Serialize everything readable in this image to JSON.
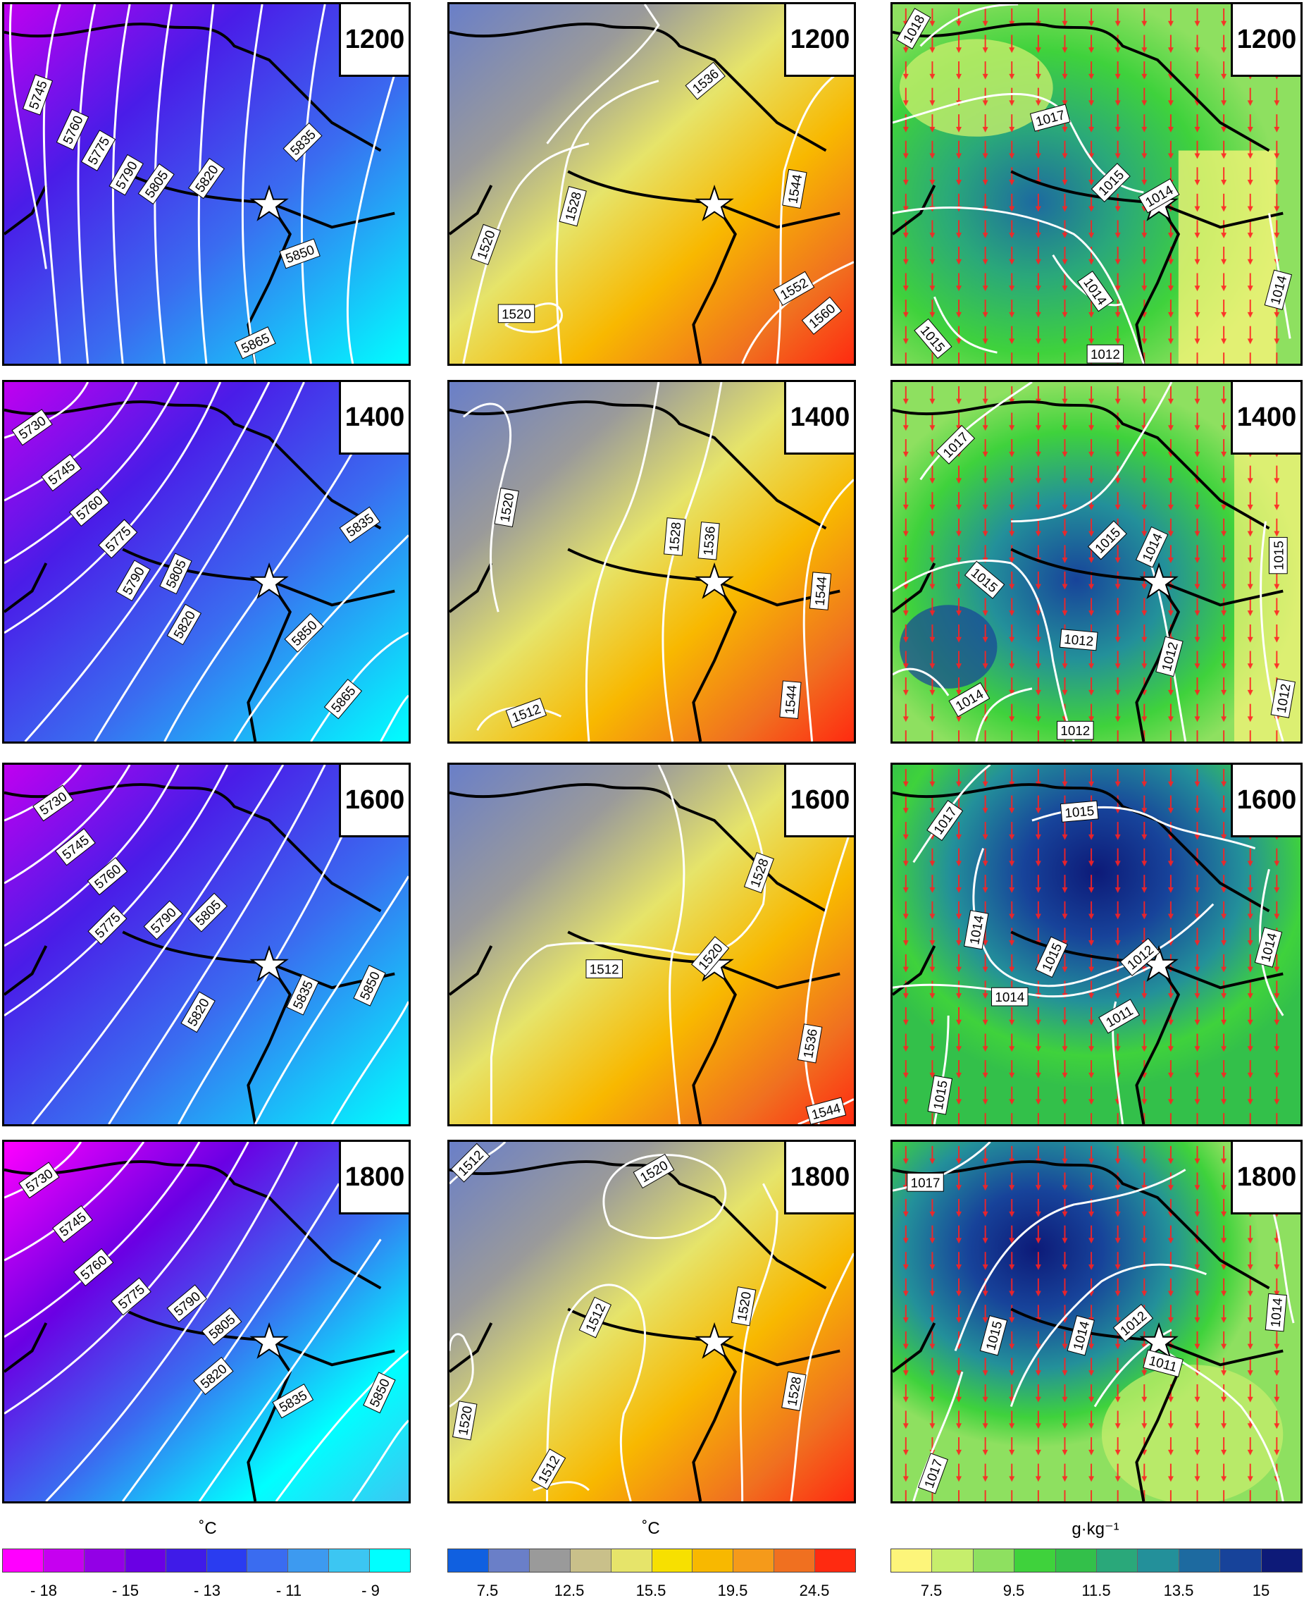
{
  "rows": [
    "1200",
    "1400",
    "1600",
    "1800"
  ],
  "columns": [
    {
      "id": "temp500",
      "palette": [
        "#ff00ff",
        "#c600f0",
        "#9300e6",
        "#6a00e4",
        "#3f1be8",
        "#2a3cf0",
        "#3a6cf0",
        "#3d9af0",
        "#3cc6f2",
        "#00ffff"
      ],
      "ticks": [
        "- 18",
        "- 15",
        "- 13",
        "- 11",
        "- 9"
      ],
      "unit": "˚C",
      "isolines": {
        "1200": [
          "5745",
          "5760",
          "5775",
          "5790",
          "5805",
          "5820",
          "5835",
          "5850",
          "5865"
        ],
        "1400": [
          "5730",
          "5745",
          "5760",
          "5775",
          "5790",
          "5805",
          "5820",
          "5835",
          "5850",
          "5865"
        ],
        "1600": [
          "5730",
          "5745",
          "5760",
          "5775",
          "5790",
          "5805",
          "5820",
          "5835",
          "5850"
        ],
        "1800": [
          "5730",
          "5745",
          "5760",
          "5775",
          "5790",
          "5805",
          "5820",
          "5835",
          "5850"
        ]
      }
    },
    {
      "id": "temp850",
      "palette": [
        "#1060e0",
        "#6a7fc8",
        "#9a9a9a",
        "#c9c08a",
        "#e6e46a",
        "#f7e000",
        "#f8b800",
        "#f59a1a",
        "#f07020",
        "#ff2a10"
      ],
      "ticks": [
        "7.5",
        "12.5",
        "15.5",
        "19.5",
        "24.5"
      ],
      "unit": "˚C",
      "isolines": {
        "1200": [
          "1536",
          "1528",
          "1544",
          "1520",
          "1520",
          "1552",
          "1560"
        ],
        "1400": [
          "1520",
          "1528",
          "1536",
          "1544",
          "1512",
          "1544"
        ],
        "1600": [
          "1528",
          "1520",
          "1512",
          "1536",
          "1544"
        ],
        "1800": [
          "1512",
          "1520",
          "1512",
          "1520",
          "1528",
          "1520",
          "1512"
        ]
      }
    },
    {
      "id": "mixing",
      "palette": [
        "#fdf57a",
        "#c6ee6c",
        "#8ee060",
        "#3fd23c",
        "#33c04a",
        "#2aa87a",
        "#23909a",
        "#1d6aa0",
        "#17439a",
        "#0d1a78"
      ],
      "ticks": [
        "7.5",
        "9.5",
        "11.5",
        "13.5",
        "15"
      ],
      "unit": "g·kg⁻¹",
      "isolines": {
        "1200": [
          "1018",
          "1017",
          "1015",
          "1014",
          "1014",
          "1015",
          "1012",
          "1014"
        ],
        "1400": [
          "1017",
          "1015",
          "1014",
          "1015",
          "1012",
          "1012",
          "1015",
          "1014",
          "1012",
          "1012"
        ],
        "1600": [
          "1017",
          "1015",
          "1014",
          "1015",
          "1012",
          "1014",
          "1011",
          "1014",
          "1015"
        ],
        "1800": [
          "1017",
          "1015",
          "1014",
          "1012",
          "1011",
          "1014",
          "1017"
        ]
      }
    }
  ]
}
